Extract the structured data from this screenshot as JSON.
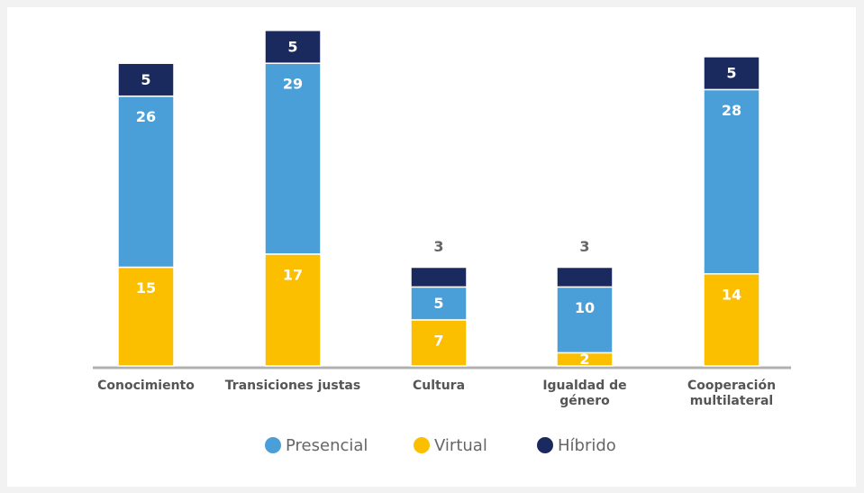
{
  "chart_data": {
    "type": "stacked_bar",
    "categories": [
      "Conocimiento",
      "Transiciones justas",
      "Cultura",
      "Igualdad de género",
      "Cooperación multilateral"
    ],
    "series": [
      {
        "name": "Virtual",
        "color": "#fbbf00",
        "values": [
          15,
          17,
          7,
          2,
          14
        ]
      },
      {
        "name": "Presencial",
        "color": "#4a9fd8",
        "values": [
          26,
          29,
          5,
          10,
          28
        ]
      },
      {
        "name": "Híbrido",
        "color": "#1b2a5e",
        "values": [
          5,
          5,
          3,
          3,
          5
        ]
      }
    ],
    "legend_order": [
      "Presencial",
      "Virtual",
      "Híbrido"
    ]
  }
}
